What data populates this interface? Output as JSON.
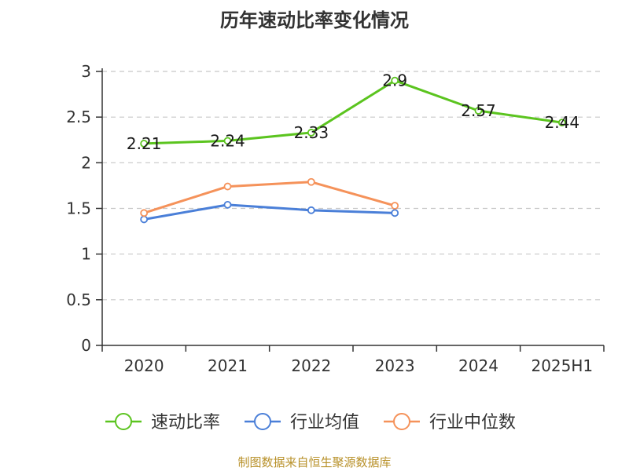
{
  "chart_data": {
    "type": "line",
    "title": "历年速动比率变化情况",
    "categories": [
      "2020",
      "2021",
      "2022",
      "2023",
      "2024",
      "2025H1"
    ],
    "ylim": [
      0,
      3
    ],
    "yticks": [
      "0",
      "0.5",
      "1",
      "1.5",
      "2",
      "2.5",
      "3"
    ],
    "grid": true,
    "legend_position": "bottom",
    "series": [
      {
        "name": "速动比率",
        "color": "#5bc41f",
        "values": [
          2.21,
          2.24,
          2.33,
          2.9,
          2.57,
          2.44
        ],
        "labels": [
          "2.21",
          "2.24",
          "2.33",
          "2.9",
          "2.57",
          "2.44"
        ]
      },
      {
        "name": "行业均值",
        "color": "#4a7fd8",
        "values": [
          1.38,
          1.54,
          1.48,
          1.45,
          null,
          null
        ]
      },
      {
        "name": "行业中位数",
        "color": "#f5925a",
        "values": [
          1.45,
          1.74,
          1.79,
          1.53,
          null,
          null
        ]
      }
    ]
  },
  "footer": {
    "source": "制图数据来自恒生聚源数据库"
  }
}
